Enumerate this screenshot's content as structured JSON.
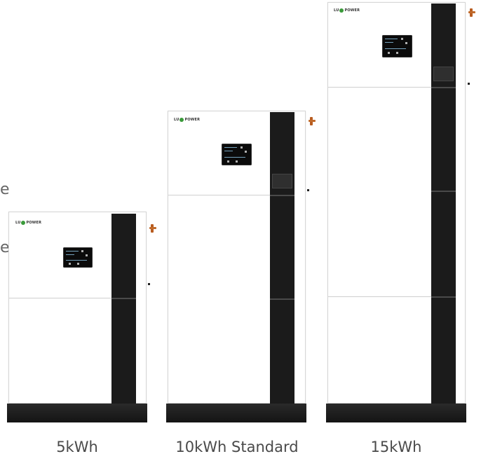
{
  "products": [
    {
      "id": "5kwh",
      "caption": "5kWh",
      "logo_text_left": "LU",
      "logo_text_right": "POWER"
    },
    {
      "id": "10kwh",
      "caption": "10kWh Standard",
      "logo_text_left": "LU",
      "logo_text_right": "POWER"
    },
    {
      "id": "15kwh",
      "caption": "15kWh",
      "logo_text_left": "LU",
      "logo_text_right": "POWER"
    }
  ],
  "edge_fragments": [
    "e",
    "e"
  ],
  "colors": {
    "cabinet": "#ffffff",
    "stripe": "#1b1b1b",
    "base": "#1a1a1a",
    "logo_accent": "#3a9a3a",
    "valve": "#c06a2b"
  }
}
